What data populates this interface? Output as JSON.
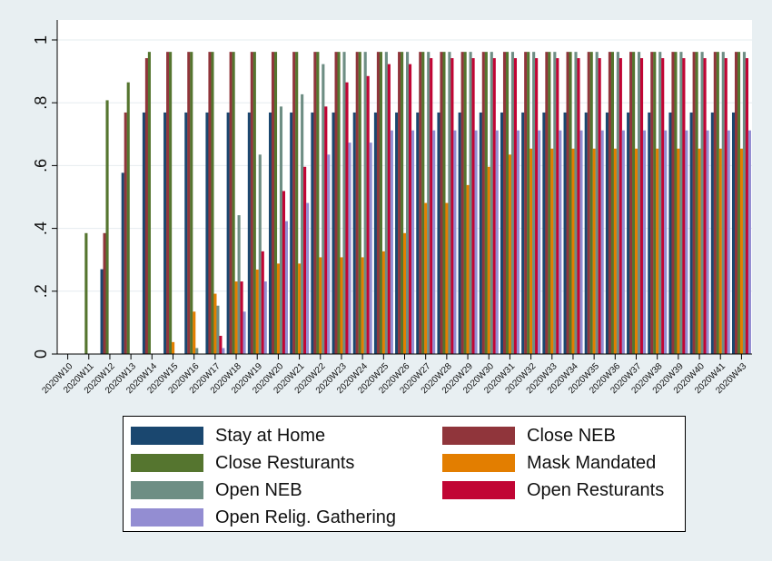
{
  "chart_data": {
    "type": "bar",
    "title": "",
    "xlabel": "",
    "ylabel": "",
    "ylim": [
      0,
      1
    ],
    "y_ticks": [
      0,
      0.2,
      0.4,
      0.6,
      0.8,
      1
    ],
    "y_tick_labels": [
      "0",
      ".2",
      ".4",
      ".6",
      ".8",
      "1"
    ],
    "grid": true,
    "legend_position": "bottom",
    "categories": [
      "2020W10",
      "2020W11",
      "2020W12",
      "2020W13",
      "2020W14",
      "2020W15",
      "2020W16",
      "2020W17",
      "2020W18",
      "2020W19",
      "2020W20",
      "2020W21",
      "2020W22",
      "2020W23",
      "2020W24",
      "2020W25",
      "2020W26",
      "2020W27",
      "2020W28",
      "2020W29",
      "2020W30",
      "2020W31",
      "2020W32",
      "2020W33",
      "2020W34",
      "2020W35",
      "2020W36",
      "2020W37",
      "2020W38",
      "2020W39",
      "2020W40",
      "2020W41",
      "2020W43"
    ],
    "series": [
      {
        "name": "Stay at Home",
        "color": "#1a476f",
        "values": [
          0,
          0,
          0.27,
          0.577,
          0.769,
          0.769,
          0.769,
          0.769,
          0.769,
          0.769,
          0.769,
          0.769,
          0.769,
          0.769,
          0.769,
          0.769,
          0.769,
          0.769,
          0.769,
          0.769,
          0.769,
          0.769,
          0.769,
          0.769,
          0.769,
          0.769,
          0.769,
          0.769,
          0.769,
          0.769,
          0.769,
          0.769,
          0.769
        ]
      },
      {
        "name": "Close NEB",
        "color": "#90353b",
        "values": [
          0,
          0,
          0.385,
          0.769,
          0.942,
          0.962,
          0.962,
          0.962,
          0.962,
          0.962,
          0.962,
          0.962,
          0.962,
          0.962,
          0.962,
          0.962,
          0.962,
          0.962,
          0.962,
          0.962,
          0.962,
          0.962,
          0.962,
          0.962,
          0.962,
          0.962,
          0.962,
          0.962,
          0.962,
          0.962,
          0.962,
          0.962,
          0.962
        ]
      },
      {
        "name": "Close Resturants",
        "color": "#55752f",
        "values": [
          0,
          0.385,
          0.808,
          0.865,
          0.962,
          0.962,
          0.962,
          0.962,
          0.962,
          0.962,
          0.962,
          0.962,
          0.962,
          0.962,
          0.962,
          0.962,
          0.962,
          0.962,
          0.962,
          0.962,
          0.962,
          0.962,
          0.962,
          0.962,
          0.962,
          0.962,
          0.962,
          0.962,
          0.962,
          0.962,
          0.962,
          0.962,
          0.962
        ]
      },
      {
        "name": "Mask Mandated",
        "color": "#e37e00",
        "values": [
          0,
          0,
          0,
          0,
          0,
          0.038,
          0.135,
          0.192,
          0.231,
          0.269,
          0.288,
          0.288,
          0.308,
          0.308,
          0.308,
          0.327,
          0.385,
          0.481,
          0.481,
          0.538,
          0.596,
          0.635,
          0.654,
          0.654,
          0.654,
          0.654,
          0.654,
          0.654,
          0.654,
          0.654,
          0.654,
          0.654,
          0.654
        ]
      },
      {
        "name": "Open NEB",
        "color": "#6e8e84",
        "values": [
          0,
          0,
          0,
          0,
          0,
          0,
          0.019,
          0.154,
          0.442,
          0.635,
          0.788,
          0.827,
          0.923,
          0.962,
          0.962,
          0.962,
          0.962,
          0.962,
          0.962,
          0.962,
          0.962,
          0.962,
          0.962,
          0.962,
          0.962,
          0.962,
          0.962,
          0.962,
          0.962,
          0.962,
          0.962,
          0.962,
          0.962
        ]
      },
      {
        "name": "Open Resturants",
        "color": "#c10534",
        "values": [
          0,
          0,
          0,
          0,
          0,
          0,
          0,
          0.058,
          0.231,
          0.327,
          0.519,
          0.596,
          0.788,
          0.865,
          0.885,
          0.923,
          0.923,
          0.942,
          0.942,
          0.942,
          0.942,
          0.942,
          0.942,
          0.942,
          0.942,
          0.942,
          0.942,
          0.942,
          0.942,
          0.942,
          0.942,
          0.942,
          0.942
        ]
      },
      {
        "name": "Open Relig. Gathering",
        "color": "#938dd2",
        "values": [
          0,
          0,
          0,
          0,
          0,
          0,
          0,
          0.019,
          0.135,
          0.231,
          0.423,
          0.481,
          0.635,
          0.673,
          0.673,
          0.712,
          0.712,
          0.712,
          0.712,
          0.712,
          0.712,
          0.712,
          0.712,
          0.712,
          0.712,
          0.712,
          0.712,
          0.712,
          0.712,
          0.712,
          0.712,
          0.712,
          0.712
        ]
      }
    ]
  },
  "legend": {
    "items": [
      {
        "label": "Stay at Home",
        "color": "#1a476f"
      },
      {
        "label": "Close NEB",
        "color": "#90353b"
      },
      {
        "label": "Close Resturants",
        "color": "#55752f"
      },
      {
        "label": "Mask Mandated",
        "color": "#e37e00"
      },
      {
        "label": "Open NEB",
        "color": "#6e8e84"
      },
      {
        "label": "Open Resturants",
        "color": "#c10534"
      },
      {
        "label": "Open Relig. Gathering",
        "color": "#938dd2"
      }
    ]
  }
}
